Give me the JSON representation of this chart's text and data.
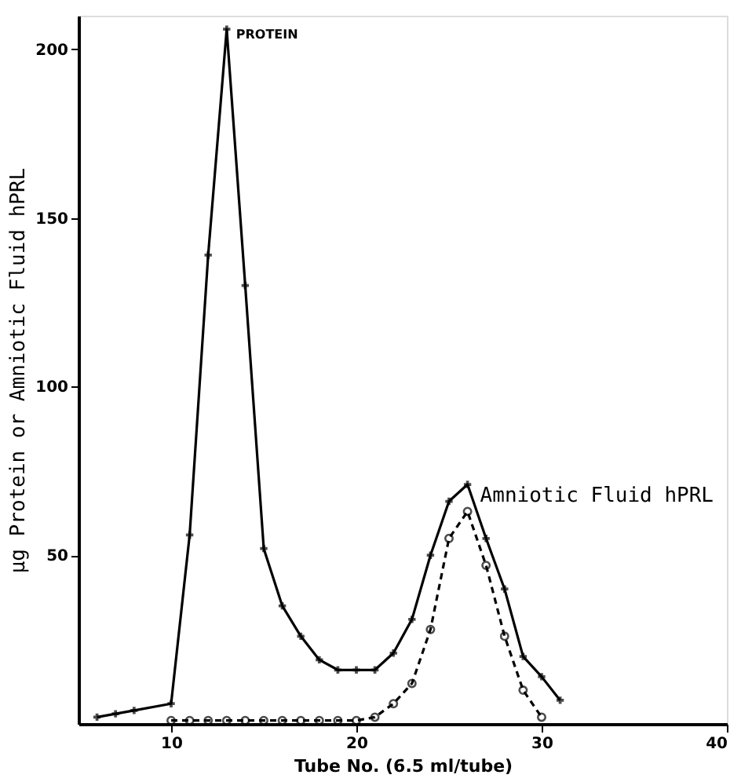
{
  "chart_data": {
    "type": "line",
    "xlabel": "Tube No. (6.5 ml/tube)",
    "ylabel": "μg Protein or Amniotic Fluid hPRL",
    "xlim": [
      5,
      40
    ],
    "ylim": [
      0,
      210
    ],
    "xticks": [
      10,
      20,
      30,
      40
    ],
    "yticks": [
      50,
      100,
      150,
      200
    ],
    "grid": false,
    "series": [
      {
        "name": "PROTEIN",
        "color": "#000000",
        "marker": "cross",
        "line_style": "solid",
        "x": [
          6,
          7,
          8,
          10,
          11,
          12,
          13,
          14,
          15,
          16,
          17,
          18,
          19,
          20,
          21,
          22,
          23,
          24,
          25,
          26,
          27,
          28,
          29,
          30,
          31
        ],
        "values": [
          2,
          3,
          4,
          6,
          56,
          139,
          206,
          130,
          52,
          35,
          26,
          19,
          16,
          16,
          16,
          21,
          31,
          50,
          66,
          71,
          55,
          40,
          20,
          14,
          7
        ]
      },
      {
        "name": "Amniotic Fluid hPRL",
        "color": "#000000",
        "marker": "circle",
        "line_style": "dashed",
        "x": [
          10,
          11,
          12,
          13,
          14,
          15,
          16,
          17,
          18,
          19,
          20,
          21,
          22,
          23,
          24,
          25,
          26,
          27,
          28,
          29,
          30
        ],
        "values": [
          1,
          1,
          1,
          1,
          1,
          1,
          1,
          1,
          1,
          1,
          1,
          2,
          6,
          12,
          28,
          55,
          63,
          47,
          26,
          10,
          2
        ]
      }
    ]
  }
}
